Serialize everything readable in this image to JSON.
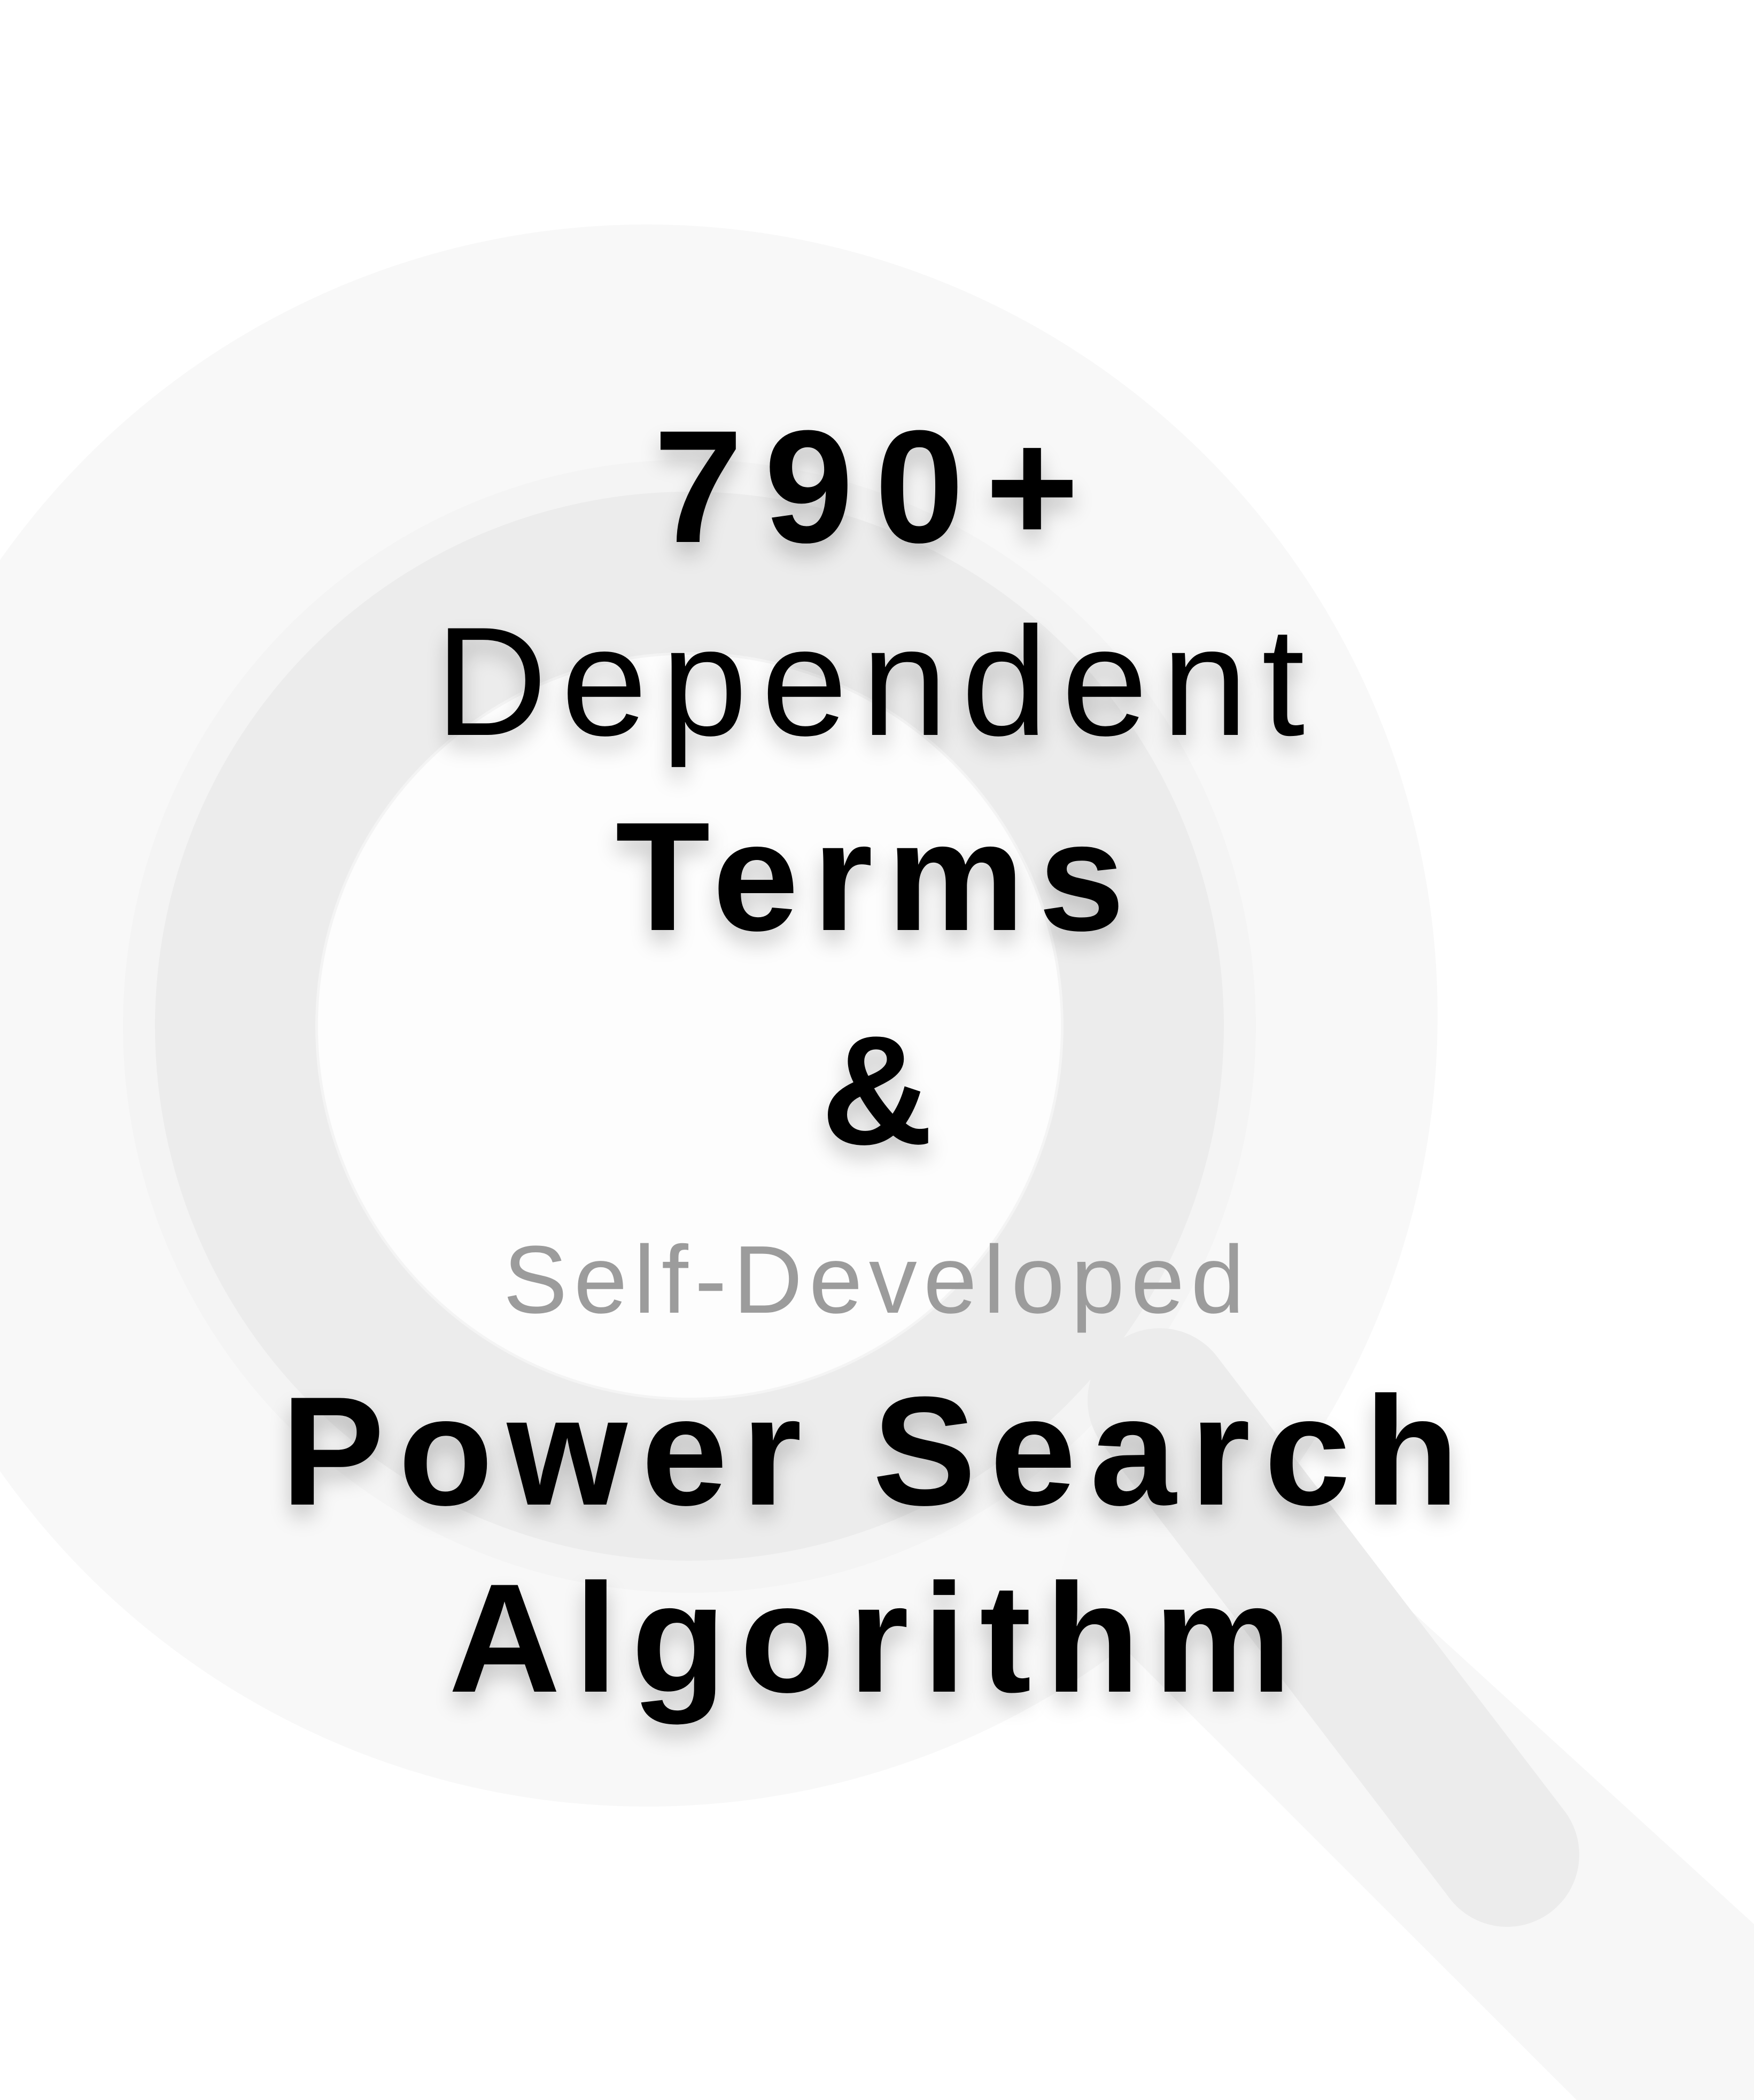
{
  "headline": {
    "count": "790+",
    "dependent": "Dependent",
    "terms": "Terms",
    "ampersand": "&",
    "self_developed": "Self-Developed",
    "power_search": "Power Search",
    "algorithm": "Algorithm"
  },
  "background": {
    "icon": "magnifying-glass-icon",
    "icon_color": "#ececec",
    "halo_color": "#f7f7f7",
    "page_color": "#ffffff"
  },
  "colors": {
    "text_primary": "#000000",
    "text_muted": "#9c9c9c"
  }
}
